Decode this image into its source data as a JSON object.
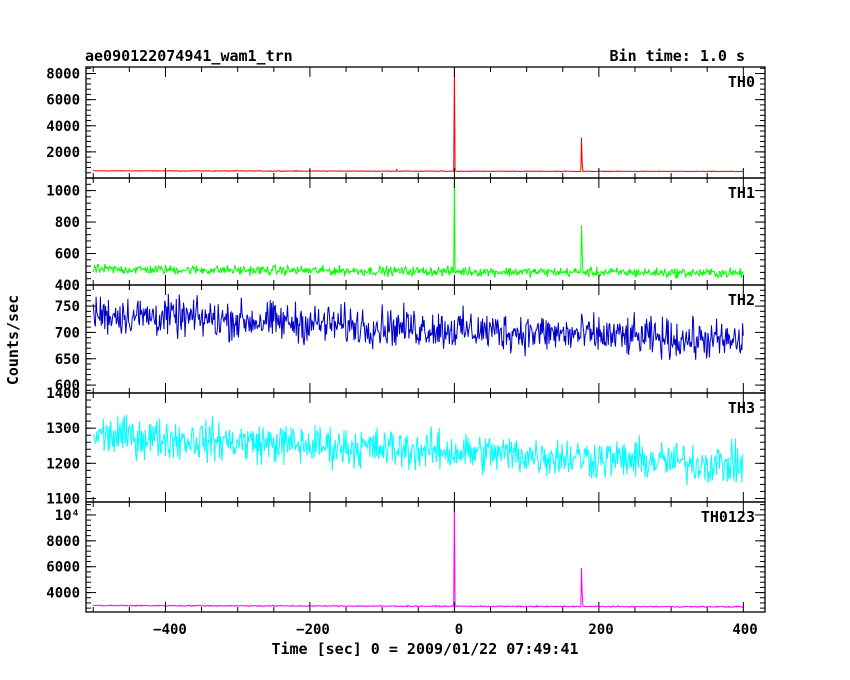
{
  "header": {
    "title": "ae090122074941_wam1_trn",
    "bin_time": "Bin time: 1.0 s"
  },
  "axes": {
    "xlabel": "Time [sec] 0 = 2009/01/22 07:49:41",
    "ylabel": "Counts/sec",
    "x_ticks": [
      "−400",
      "−200",
      "0",
      "200",
      "400"
    ]
  },
  "chart_data": {
    "type": "line",
    "title": "ae090122074941_wam1_trn",
    "xlabel": "Time [sec] 0 = 2009/01/22 07:49:41",
    "ylabel": "Counts/sec",
    "xlim": [
      -510,
      430
    ],
    "x_range": [
      -500,
      400
    ],
    "bin_time_s": 1.0,
    "panels": [
      {
        "name": "TH0",
        "color": "#ff0000",
        "ylim": [
          0,
          8500
        ],
        "y_ticks": [
          2000,
          4000,
          6000,
          8000
        ],
        "y_tick_labels": [
          "2000",
          "4000",
          "6000",
          "8000"
        ],
        "baseline": {
          "start": 550,
          "end": 500
        },
        "noise_amp": 40,
        "spikes": [
          {
            "x": 0,
            "y": 8500
          },
          {
            "x": 176,
            "y": 3100
          },
          {
            "x": 177,
            "y": 1100
          },
          {
            "x": -80,
            "y": 650
          }
        ]
      },
      {
        "name": "TH1",
        "color": "#00ff00",
        "ylim": [
          400,
          1080
        ],
        "y_ticks": [
          400,
          600,
          800,
          1000
        ],
        "y_tick_labels": [
          "400",
          "600",
          "800",
          "1000"
        ],
        "baseline": {
          "start": 500,
          "end": 475
        },
        "noise_amp": 45,
        "spikes": [
          {
            "x": 0,
            "y": 1080
          },
          {
            "x": 176,
            "y": 780
          },
          {
            "x": 177,
            "y": 620
          }
        ]
      },
      {
        "name": "TH2",
        "color": "#0000cc",
        "ylim": [
          585,
          790
        ],
        "y_ticks": [
          600,
          650,
          700,
          750
        ],
        "y_tick_labels": [
          "600",
          "650",
          "700",
          "750"
        ],
        "baseline": {
          "start": 735,
          "end": 682
        },
        "noise_amp": 55,
        "spikes": []
      },
      {
        "name": "TH3",
        "color": "#00ffff",
        "ylim": [
          1090,
          1400
        ],
        "y_ticks": [
          1100,
          1200,
          1300,
          1400
        ],
        "y_tick_labels": [
          "1100",
          "1200",
          "1300",
          "1400"
        ],
        "baseline": {
          "start": 1280,
          "end": 1195
        },
        "noise_amp": 85,
        "spikes": []
      },
      {
        "name": "TH0123",
        "color": "#ff00ff",
        "ylim": [
          2500,
          11000
        ],
        "y_ticks": [
          4000,
          6000,
          8000,
          10000
        ],
        "y_tick_labels": [
          "4000",
          "6000",
          "8000",
          "10⁴"
        ],
        "baseline": {
          "start": 3000,
          "end": 2900
        },
        "noise_amp": 70,
        "spikes": [
          {
            "x": 0,
            "y": 11000
          },
          {
            "x": 176,
            "y": 5900
          },
          {
            "x": 177,
            "y": 3900
          }
        ]
      }
    ]
  }
}
